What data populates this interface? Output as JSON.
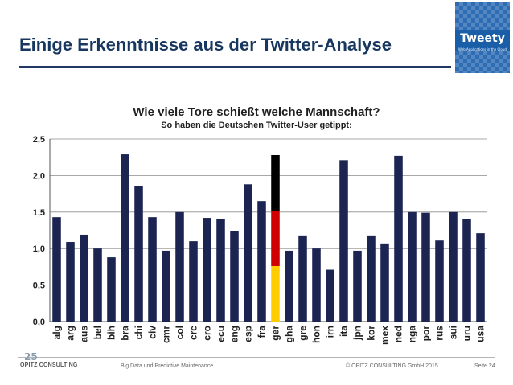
{
  "slide": {
    "title": "Einige Erkenntnisse aus der Twitter-Analyse",
    "logo_text": "Tweety",
    "logo_subtext": "Web Applications in the Cloud"
  },
  "footer": {
    "logo_number": "25",
    "logo_name": "OPITZ CONSULTING",
    "center_text": "Big Data und Predictive Maintenance",
    "copyright": "© OPITZ CONSULTING GmbH 2015",
    "page": "Seite 24"
  },
  "colors": {
    "bar": "#1c2452",
    "ger_black": "#000000",
    "ger_red": "#d10000",
    "ger_gold": "#ffcc00",
    "title": "#17375e"
  },
  "chart_data": {
    "type": "bar",
    "title": "Wie viele Tore schießt welche Mannschaft?",
    "subtitle": "So haben die Deutschen Twitter-User getippt:",
    "xlabel": "",
    "ylabel": "",
    "ylim": [
      0,
      2.5
    ],
    "yticks": [
      "0,0",
      "0,5",
      "1,0",
      "1,5",
      "2,0",
      "2,5"
    ],
    "ytick_values": [
      0,
      0.5,
      1.0,
      1.5,
      2.0,
      2.5
    ],
    "grid": true,
    "legend": "none",
    "categories": [
      "alg",
      "arg",
      "aus",
      "bel",
      "bih",
      "bra",
      "chi",
      "civ",
      "cmr",
      "col",
      "crc",
      "cro",
      "ecu",
      "eng",
      "esp",
      "fra",
      "ger",
      "gha",
      "gre",
      "hon",
      "irn",
      "ita",
      "jpn",
      "kor",
      "mex",
      "ned",
      "nga",
      "por",
      "rus",
      "sui",
      "uru",
      "usa"
    ],
    "values": [
      1.43,
      1.09,
      1.19,
      1.0,
      0.88,
      2.29,
      1.86,
      1.43,
      0.97,
      1.5,
      1.1,
      1.42,
      1.41,
      1.24,
      1.88,
      1.65,
      2.28,
      0.97,
      1.18,
      1.0,
      0.71,
      2.21,
      0.97,
      1.18,
      1.07,
      2.27,
      1.5,
      1.49,
      1.11,
      1.5,
      1.4,
      1.21
    ],
    "highlight": "ger"
  }
}
